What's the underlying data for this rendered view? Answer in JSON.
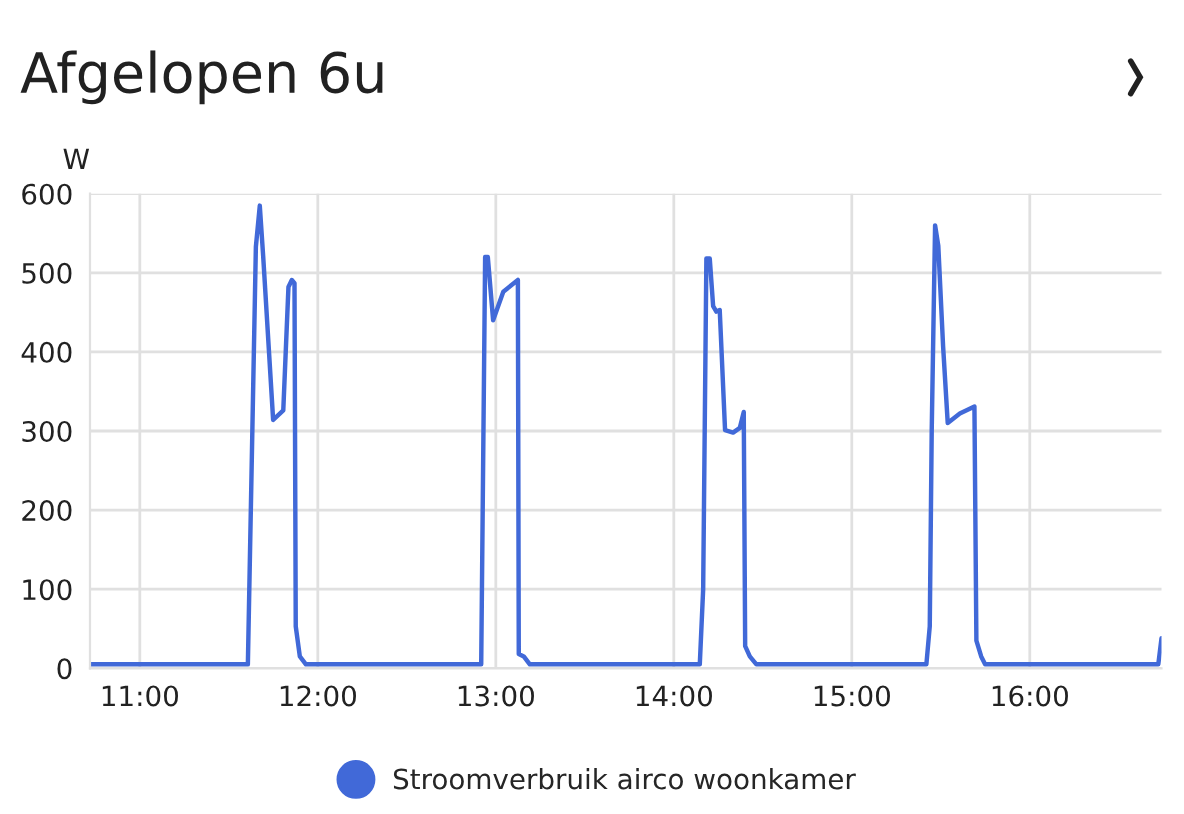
{
  "chart_data": {
    "type": "line",
    "title": "Afgelopen 6u",
    "ylabel": "W",
    "x": [
      10.72,
      11.0,
      11.3,
      11.607,
      11.652,
      11.674,
      11.693,
      11.749,
      11.806,
      11.835,
      11.854,
      11.869,
      11.876,
      11.899,
      11.933,
      12.3,
      12.6,
      12.918,
      12.94,
      12.955,
      12.985,
      13.042,
      13.124,
      13.129,
      13.157,
      13.191,
      13.6,
      14.0,
      14.146,
      14.165,
      14.183,
      14.202,
      14.221,
      14.239,
      14.258,
      14.288,
      14.333,
      14.371,
      14.393,
      14.401,
      14.427,
      14.464,
      14.8,
      15.1,
      15.419,
      15.438,
      15.449,
      15.468,
      15.486,
      15.513,
      15.539,
      15.607,
      15.689,
      15.7,
      15.727,
      15.749,
      16.1,
      16.4,
      16.722,
      16.74
    ],
    "series": [
      {
        "name": "Stroomverbruik airco woonkamer",
        "color": "#4169d8",
        "values": [
          5,
          5,
          5,
          5,
          533,
          585,
          521,
          314,
          326,
          482,
          491,
          487,
          53,
          15,
          5,
          5,
          5,
          5,
          520,
          520,
          440,
          476,
          491,
          18,
          15,
          5,
          5,
          5,
          5,
          100,
          518,
          518,
          458,
          451,
          453,
          301,
          298,
          304,
          324,
          28,
          15,
          5,
          5,
          5,
          5,
          53,
          300,
          560,
          534,
          407,
          310,
          322,
          331,
          35,
          15,
          5,
          5,
          5,
          5,
          38
        ]
      }
    ],
    "xlim": [
      10.72,
      16.74
    ],
    "xticks": [
      {
        "value": 11,
        "label": "11:00"
      },
      {
        "value": 12,
        "label": "12:00"
      },
      {
        "value": 13,
        "label": "13:00"
      },
      {
        "value": 14,
        "label": "14:00"
      },
      {
        "value": 15,
        "label": "15:00"
      },
      {
        "value": 16,
        "label": "16:00"
      }
    ],
    "ylim": [
      0,
      600
    ],
    "yticks": [
      0,
      100,
      200,
      300,
      400,
      500,
      600
    ],
    "grid": true,
    "legend": "bottom",
    "marker": "none",
    "line_style": "solid"
  }
}
